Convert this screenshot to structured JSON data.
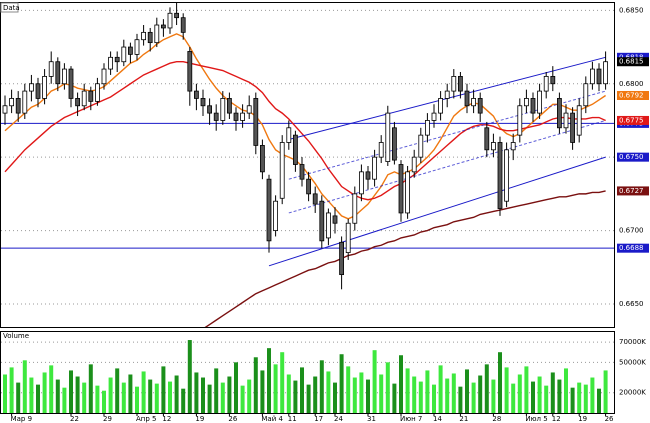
{
  "chart_data": {
    "type": "candlestick",
    "title": "Data",
    "categories": [
      null,
      "Мар 9",
      null,
      null,
      null,
      null,
      null,
      null,
      null,
      null,
      "22",
      null,
      null,
      null,
      null,
      "29",
      null,
      null,
      null,
      null,
      "Апр 5",
      null,
      null,
      null,
      "12",
      null,
      null,
      null,
      null,
      "19",
      null,
      null,
      null,
      null,
      "26",
      null,
      null,
      null,
      null,
      "Май 4",
      null,
      null,
      null,
      "11",
      null,
      null,
      null,
      "17",
      null,
      null,
      "24",
      null,
      null,
      null,
      null,
      "31",
      null,
      null,
      null,
      null,
      "Июн 7",
      null,
      null,
      null,
      null,
      "14",
      null,
      null,
      null,
      "21",
      null,
      null,
      null,
      null,
      "28",
      null,
      null,
      null,
      null,
      "Июл 5",
      null,
      null,
      null,
      "12",
      null,
      null,
      null,
      "19",
      null,
      null,
      null,
      "26"
    ],
    "open": [
      0.678,
      0.6785,
      0.679,
      0.678,
      0.6795,
      0.68,
      0.679,
      0.6805,
      0.6815,
      0.68,
      0.681,
      0.679,
      0.6785,
      0.6795,
      0.6788,
      0.68,
      0.681,
      0.6818,
      0.6815,
      0.6825,
      0.682,
      0.683,
      0.6835,
      0.6828,
      0.684,
      0.6838,
      0.6848,
      0.6845,
      0.6822,
      0.6795,
      0.679,
      0.6785,
      0.678,
      0.6775,
      0.679,
      0.678,
      0.6775,
      0.678,
      0.679,
      0.6758,
      0.6735,
      0.67,
      0.6722,
      0.676,
      0.6765,
      0.6745,
      0.6735,
      0.6725,
      0.672,
      0.6695,
      0.671,
      0.6692,
      0.6685,
      0.6705,
      0.6725,
      0.674,
      0.6735,
      0.675,
      0.6747,
      0.677,
      0.6745,
      0.6712,
      0.674,
      0.675,
      0.6765,
      0.6775,
      0.678,
      0.679,
      0.6795,
      0.6805,
      0.6795,
      0.6785,
      0.679,
      0.677,
      0.6755,
      0.676,
      0.672,
      0.6755,
      0.6765,
      0.6785,
      0.679,
      0.678,
      0.6795,
      0.6805,
      0.679,
      0.677,
      0.678,
      0.6765,
      0.6785,
      0.68,
      0.681,
      0.68
    ],
    "high": [
      0.6792,
      0.6796,
      0.6795,
      0.68,
      0.6806,
      0.6804,
      0.681,
      0.6822,
      0.6818,
      0.6814,
      0.6812,
      0.6794,
      0.68,
      0.6798,
      0.6804,
      0.6814,
      0.6822,
      0.6822,
      0.683,
      0.6828,
      0.6834,
      0.684,
      0.6838,
      0.6845,
      0.6844,
      0.6852,
      0.6856,
      0.6848,
      0.6825,
      0.68,
      0.6796,
      0.679,
      0.6786,
      0.6795,
      0.6794,
      0.6784,
      0.6786,
      0.6792,
      0.6794,
      0.6762,
      0.6738,
      0.6724,
      0.6765,
      0.6775,
      0.6768,
      0.675,
      0.674,
      0.673,
      0.6724,
      0.6715,
      0.6716,
      0.6696,
      0.6708,
      0.673,
      0.6745,
      0.6744,
      0.6755,
      0.6765,
      0.6785,
      0.6774,
      0.6748,
      0.6744,
      0.6755,
      0.677,
      0.678,
      0.6786,
      0.6795,
      0.68,
      0.681,
      0.6808,
      0.68,
      0.6796,
      0.6794,
      0.6774,
      0.6766,
      0.6764,
      0.676,
      0.6766,
      0.679,
      0.6796,
      0.6794,
      0.68,
      0.6808,
      0.6812,
      0.6794,
      0.6786,
      0.6784,
      0.679,
      0.6805,
      0.6815,
      0.6814,
      0.6822
    ],
    "low": [
      0.6772,
      0.678,
      0.6774,
      0.6776,
      0.6788,
      0.6784,
      0.6786,
      0.68,
      0.6795,
      0.6796,
      0.6784,
      0.6778,
      0.6782,
      0.6782,
      0.6785,
      0.6796,
      0.6806,
      0.6808,
      0.6812,
      0.6814,
      0.6816,
      0.6826,
      0.6822,
      0.6825,
      0.6832,
      0.6834,
      0.684,
      0.683,
      0.6785,
      0.6782,
      0.6778,
      0.6772,
      0.6768,
      0.6772,
      0.6776,
      0.6768,
      0.677,
      0.6776,
      0.6752,
      0.6735,
      0.6685,
      0.6696,
      0.6718,
      0.6755,
      0.674,
      0.673,
      0.672,
      0.6712,
      0.6688,
      0.669,
      0.6698,
      0.666,
      0.668,
      0.67,
      0.672,
      0.6728,
      0.673,
      0.6746,
      0.6744,
      0.6745,
      0.6706,
      0.6708,
      0.6736,
      0.6746,
      0.676,
      0.677,
      0.6775,
      0.6784,
      0.679,
      0.679,
      0.678,
      0.678,
      0.6774,
      0.675,
      0.675,
      0.671,
      0.6716,
      0.6748,
      0.676,
      0.678,
      0.6774,
      0.6776,
      0.679,
      0.6795,
      0.6766,
      0.6766,
      0.6755,
      0.676,
      0.678,
      0.6796,
      0.6795,
      0.6796
    ],
    "close": [
      0.6785,
      0.679,
      0.678,
      0.6795,
      0.68,
      0.679,
      0.6805,
      0.6815,
      0.68,
      0.681,
      0.679,
      0.6785,
      0.6795,
      0.6788,
      0.68,
      0.681,
      0.6818,
      0.6815,
      0.6825,
      0.682,
      0.683,
      0.6835,
      0.6828,
      0.684,
      0.6838,
      0.6848,
      0.6845,
      0.6835,
      0.6795,
      0.679,
      0.6785,
      0.678,
      0.6775,
      0.679,
      0.678,
      0.6775,
      0.678,
      0.6785,
      0.6758,
      0.674,
      0.6693,
      0.672,
      0.676,
      0.677,
      0.6745,
      0.6735,
      0.6725,
      0.6718,
      0.6693,
      0.6712,
      0.6705,
      0.667,
      0.6705,
      0.6725,
      0.674,
      0.6735,
      0.675,
      0.676,
      0.678,
      0.6748,
      0.6712,
      0.674,
      0.675,
      0.6765,
      0.6775,
      0.678,
      0.679,
      0.6795,
      0.6805,
      0.6795,
      0.6785,
      0.679,
      0.678,
      0.6755,
      0.676,
      0.6715,
      0.6755,
      0.676,
      0.6785,
      0.679,
      0.678,
      0.6795,
      0.6805,
      0.68,
      0.677,
      0.678,
      0.676,
      0.6785,
      0.68,
      0.681,
      0.68,
      0.6815
    ],
    "close_label": "0.6815",
    "up_color": "#ffffff",
    "down_color": "#555555",
    "ylim": [
      0.6635,
      0.6855
    ],
    "yticks": [
      {
        "value": 0.665,
        "label": "0.6650"
      },
      {
        "value": 0.67,
        "label": "0.6700"
      },
      {
        "value": 0.675,
        "label": "0.6750"
      },
      {
        "value": 0.68,
        "label": "0.6800"
      },
      {
        "value": 0.685,
        "label": "0.6850"
      }
    ],
    "grid": true,
    "lines": [
      {
        "color": "#f07810",
        "end_label": "0.6792",
        "values": [
          0.6768,
          0.6772,
          0.6776,
          0.678,
          0.6784,
          0.6786,
          0.679,
          0.6795,
          0.6797,
          0.68,
          0.6799,
          0.6797,
          0.6796,
          0.6795,
          0.6796,
          0.6798,
          0.6802,
          0.6806,
          0.681,
          0.6814,
          0.6816,
          0.682,
          0.6823,
          0.6827,
          0.683,
          0.6832,
          0.6834,
          0.6832,
          0.6825,
          0.6817,
          0.681,
          0.6803,
          0.6797,
          0.6792,
          0.6788,
          0.6785,
          0.6782,
          0.6781,
          0.6778,
          0.6772,
          0.6762,
          0.6755,
          0.6752,
          0.675,
          0.6748,
          0.6744,
          0.6738,
          0.6732,
          0.6725,
          0.672,
          0.6715,
          0.671,
          0.6708,
          0.671,
          0.6714,
          0.6718,
          0.6724,
          0.673,
          0.6738,
          0.674,
          0.6738,
          0.674,
          0.6742,
          0.6746,
          0.675,
          0.6755,
          0.6762,
          0.677,
          0.6778,
          0.6782,
          0.6785,
          0.6787,
          0.6786,
          0.6782,
          0.6778,
          0.677,
          0.6766,
          0.6764,
          0.6766,
          0.677,
          0.6774,
          0.6778,
          0.6782,
          0.6786,
          0.6786,
          0.6784,
          0.6782,
          0.6782,
          0.6784,
          0.6786,
          0.6789,
          0.6792
        ]
      },
      {
        "color": "#e01818",
        "end_label": "0.6775",
        "values": [
          0.674,
          0.6745,
          0.675,
          0.6755,
          0.6759,
          0.6763,
          0.6767,
          0.6771,
          0.6774,
          0.6777,
          0.6779,
          0.6781,
          0.6783,
          0.6785,
          0.6787,
          0.6789,
          0.6791,
          0.6794,
          0.6797,
          0.68,
          0.6803,
          0.6806,
          0.6808,
          0.681,
          0.6812,
          0.6814,
          0.6815,
          0.6815,
          0.6814,
          0.6813,
          0.6812,
          0.6811,
          0.681,
          0.6809,
          0.6807,
          0.6805,
          0.6803,
          0.6801,
          0.6798,
          0.6794,
          0.6788,
          0.6783,
          0.678,
          0.6776,
          0.6771,
          0.6766,
          0.6761,
          0.6755,
          0.6749,
          0.6742,
          0.6736,
          0.673,
          0.6727,
          0.6724,
          0.6722,
          0.6721,
          0.6722,
          0.6724,
          0.6727,
          0.673,
          0.6732,
          0.6735,
          0.6738,
          0.6742,
          0.6746,
          0.675,
          0.6754,
          0.6758,
          0.6762,
          0.6766,
          0.6769,
          0.6771,
          0.6772,
          0.6772,
          0.6771,
          0.6769,
          0.6768,
          0.6768,
          0.6769,
          0.677,
          0.6771,
          0.6772,
          0.6774,
          0.6776,
          0.6777,
          0.6777,
          0.6776,
          0.6776,
          0.6776,
          0.6777,
          0.6777,
          0.6775
        ]
      },
      {
        "color": "#7a1010",
        "end_label": "0.6727",
        "values": [
          null,
          null,
          null,
          null,
          null,
          null,
          null,
          null,
          null,
          null,
          null,
          null,
          null,
          null,
          null,
          null,
          null,
          null,
          null,
          null,
          null,
          null,
          null,
          null,
          null,
          null,
          null,
          null,
          null,
          null,
          0.6633,
          0.6636,
          0.6639,
          0.6642,
          0.6645,
          0.6648,
          0.6651,
          0.6654,
          0.6657,
          0.6659,
          0.6661,
          0.6663,
          0.6665,
          0.6667,
          0.6669,
          0.6671,
          0.6673,
          0.6674,
          0.6676,
          0.6678,
          0.6679,
          0.6681,
          0.6683,
          0.6684,
          0.6686,
          0.6687,
          0.6689,
          0.669,
          0.6692,
          0.6693,
          0.6695,
          0.6696,
          0.6697,
          0.6699,
          0.67,
          0.6702,
          0.6703,
          0.6704,
          0.6706,
          0.6707,
          0.6708,
          0.6709,
          0.6711,
          0.6712,
          0.6713,
          0.6714,
          0.6715,
          0.6716,
          0.6717,
          0.6718,
          0.6719,
          0.672,
          0.6721,
          0.6722,
          0.6723,
          0.6723,
          0.6724,
          0.6725,
          0.6725,
          0.6726,
          0.6726,
          0.6727
        ]
      }
    ],
    "trendlines": [
      {
        "color": "#1a1ac8",
        "dash": false,
        "end_label": "0.6818",
        "x": [
          43,
          91
        ],
        "values": [
          0.6762,
          0.6818
        ]
      },
      {
        "color": "#1a1ac8",
        "dash": true,
        "x": [
          43,
          91
        ],
        "values": [
          0.6735,
          0.6795
        ]
      },
      {
        "color": "#1a1ac8",
        "dash": true,
        "x": [
          43,
          91
        ],
        "values": [
          0.6712,
          0.6775
        ]
      },
      {
        "color": "#1a1ac8",
        "dash": false,
        "end_label": "0.6750",
        "x": [
          40,
          91
        ],
        "values": [
          0.6676,
          0.675
        ]
      }
    ],
    "hlines": [
      {
        "color": "#1a1ac8",
        "value": 0.6773,
        "label": "0.6773"
      },
      {
        "color": "#1a1ac8",
        "value": 0.6688,
        "label": "0.6688"
      }
    ],
    "volume": {
      "title": "Volume",
      "up_color": "#3ee83e",
      "down_color": "#1b8f1b",
      "ylim": [
        0,
        75000
      ],
      "yticks": [
        {
          "value": 20000,
          "label": "20000K"
        },
        {
          "value": 50000,
          "label": "50000K"
        },
        {
          "value": 70000,
          "label": "70000K"
        }
      ],
      "values": [
        38000,
        45000,
        30000,
        52000,
        35000,
        28000,
        40000,
        47000,
        33000,
        25000,
        42000,
        36000,
        30000,
        48000,
        27000,
        22000,
        35000,
        44000,
        30000,
        38000,
        26000,
        41000,
        33000,
        29000,
        46000,
        31000,
        37000,
        24000,
        72000,
        40000,
        35000,
        28000,
        44000,
        30000,
        36000,
        50000,
        27000,
        33000,
        55000,
        42000,
        64000,
        48000,
        60000,
        38000,
        32000,
        45000,
        28000,
        36000,
        52000,
        41000,
        30000,
        58000,
        46000,
        35000,
        40000,
        33000,
        62000,
        38000,
        50000,
        29000,
        57000,
        44000,
        36000,
        31000,
        42000,
        28000,
        47000,
        34000,
        39000,
        26000,
        43000,
        30000,
        37000,
        48000,
        33000,
        60000,
        45000,
        29000,
        38000,
        46000,
        31000,
        36000,
        27000,
        40000,
        33000,
        44000,
        25000,
        30000,
        28000,
        35000,
        24000,
        42000
      ]
    }
  }
}
